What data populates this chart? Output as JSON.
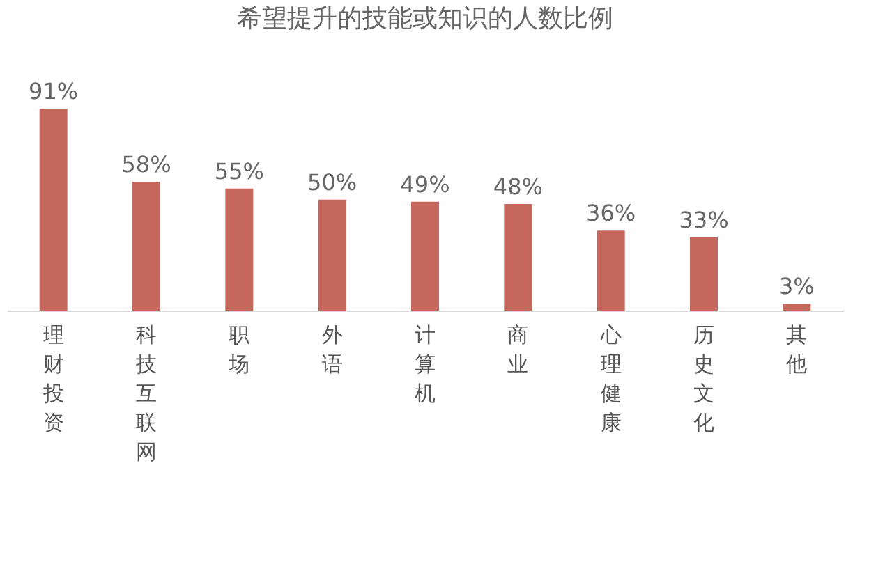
{
  "chart_data": {
    "type": "bar",
    "title": "希望提升的技能或知识的人数比例",
    "categories": [
      "理财投资",
      "科技互联网",
      "职场",
      "外语",
      "计算机",
      "商业",
      "心理健康",
      "历史文化",
      "其他"
    ],
    "values": [
      91,
      58,
      55,
      50,
      49,
      48,
      36,
      33,
      3
    ],
    "value_labels": [
      "91%",
      "58%",
      "55%",
      "50%",
      "49%",
      "48%",
      "36%",
      "33%",
      "3%"
    ],
    "color": "#c5675c",
    "grid": false
  }
}
